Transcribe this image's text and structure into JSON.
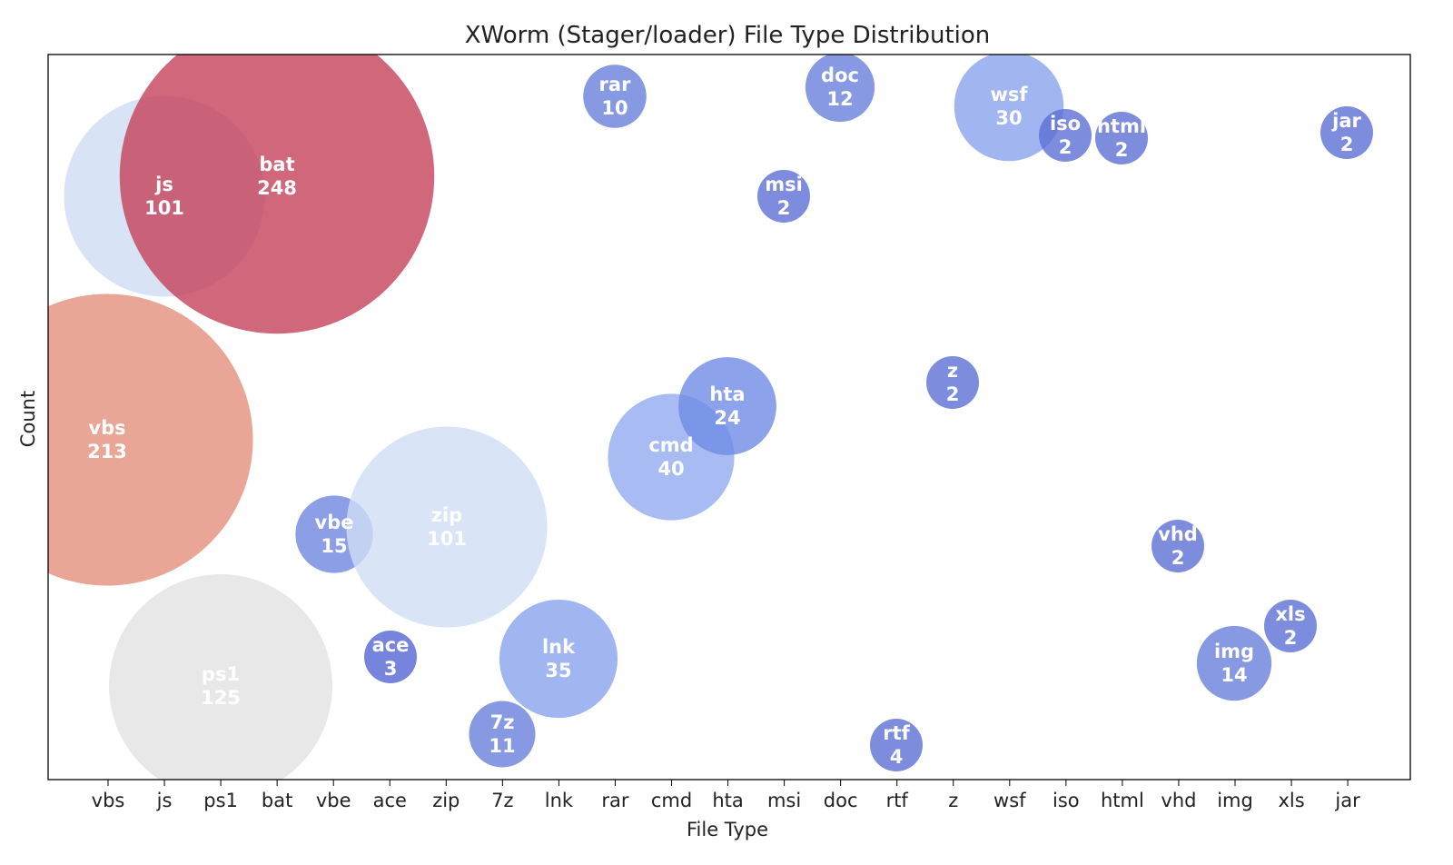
{
  "chart_data": {
    "type": "scatter",
    "title": "XWorm (Stager/loader) File Type Distribution",
    "xlabel": "File Type",
    "ylabel": "Count",
    "categories": [
      "vbs",
      "js",
      "ps1",
      "bat",
      "vbe",
      "ace",
      "zip",
      "7z",
      "lnk",
      "rar",
      "cmd",
      "hta",
      "msi",
      "doc",
      "rtf",
      "z",
      "wsf",
      "iso",
      "html",
      "vhd",
      "img",
      "xls",
      "jar"
    ],
    "y_ticks_shown": false,
    "grid": false,
    "legend": "none",
    "bubble_size_encodes": "count",
    "bubbles": [
      {
        "label": "vbs",
        "count": 213,
        "color": "#e48f7c",
        "opacity": 0.8
      },
      {
        "label": "js",
        "count": 101,
        "color": "#cbd9f2",
        "opacity": 0.75
      },
      {
        "label": "ps1",
        "count": 125,
        "color": "#e6e6e6",
        "opacity": 0.9
      },
      {
        "label": "bat",
        "count": 248,
        "color": "#c6415a",
        "opacity": 0.8
      },
      {
        "label": "vbe",
        "count": 15,
        "color": "#6f86e0",
        "opacity": 0.8
      },
      {
        "label": "ace",
        "count": 3,
        "color": "#5e6fd6",
        "opacity": 0.85
      },
      {
        "label": "zip",
        "count": 101,
        "color": "#cfddf5",
        "opacity": 0.8
      },
      {
        "label": "7z",
        "count": 11,
        "color": "#6a7fdc",
        "opacity": 0.8
      },
      {
        "label": "lnk",
        "count": 35,
        "color": "#8aa3ee",
        "opacity": 0.8
      },
      {
        "label": "rar",
        "count": 10,
        "color": "#6a7fdc",
        "opacity": 0.8
      },
      {
        "label": "cmd",
        "count": 40,
        "color": "#92abf0",
        "opacity": 0.8
      },
      {
        "label": "hta",
        "count": 24,
        "color": "#6f8be6",
        "opacity": 0.8
      },
      {
        "label": "msi",
        "count": 2,
        "color": "#5e6fd6",
        "opacity": 0.8
      },
      {
        "label": "doc",
        "count": 12,
        "color": "#6a7fdc",
        "opacity": 0.8
      },
      {
        "label": "rtf",
        "count": 4,
        "color": "#5e6fd6",
        "opacity": 0.8
      },
      {
        "label": "z",
        "count": 2,
        "color": "#5e6fd6",
        "opacity": 0.8
      },
      {
        "label": "wsf",
        "count": 30,
        "color": "#8aa3ee",
        "opacity": 0.8
      },
      {
        "label": "iso",
        "count": 2,
        "color": "#5e6fd6",
        "opacity": 0.8
      },
      {
        "label": "html",
        "count": 2,
        "color": "#5e6fd6",
        "opacity": 0.8
      },
      {
        "label": "vhd",
        "count": 2,
        "color": "#5e6fd6",
        "opacity": 0.8
      },
      {
        "label": "img",
        "count": 14,
        "color": "#6a7fdc",
        "opacity": 0.8
      },
      {
        "label": "xls",
        "count": 2,
        "color": "#5e6fd6",
        "opacity": 0.8
      },
      {
        "label": "jar",
        "count": 2,
        "color": "#5e6fd6",
        "opacity": 0.8
      }
    ]
  }
}
